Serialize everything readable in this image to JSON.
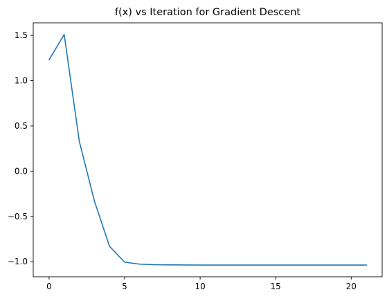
{
  "chart_data": {
    "type": "line",
    "title": "f(x) vs Iteration for Gradient Descent",
    "xlabel": "",
    "ylabel": "",
    "xlim": [
      -1.05,
      22.05
    ],
    "ylim": [
      -1.1665,
      1.6385
    ],
    "x_ticks": [
      0,
      5,
      10,
      15,
      20
    ],
    "x_tick_labels": [
      "0",
      "5",
      "10",
      "15",
      "20"
    ],
    "y_ticks": [
      -1.0,
      -0.5,
      0.0,
      0.5,
      1.0,
      1.5
    ],
    "y_tick_labels": [
      "−1.0",
      "−0.5",
      "0.0",
      "0.5",
      "1.0",
      "1.5"
    ],
    "grid": false,
    "legend": "none",
    "series": [
      {
        "color": "#1f77b4",
        "x": [
          0,
          1,
          2,
          3,
          4,
          5,
          6,
          7,
          8,
          9,
          10,
          11,
          12,
          13,
          14,
          15,
          16,
          17,
          18,
          19,
          20,
          21
        ],
        "y": [
          1.23,
          1.51,
          0.33,
          -0.33,
          -0.83,
          -1.005,
          -1.027,
          -1.033,
          -1.035,
          -1.036,
          -1.037,
          -1.037,
          -1.037,
          -1.037,
          -1.037,
          -1.037,
          -1.037,
          -1.037,
          -1.037,
          -1.037,
          -1.037,
          -1.037
        ]
      }
    ]
  }
}
